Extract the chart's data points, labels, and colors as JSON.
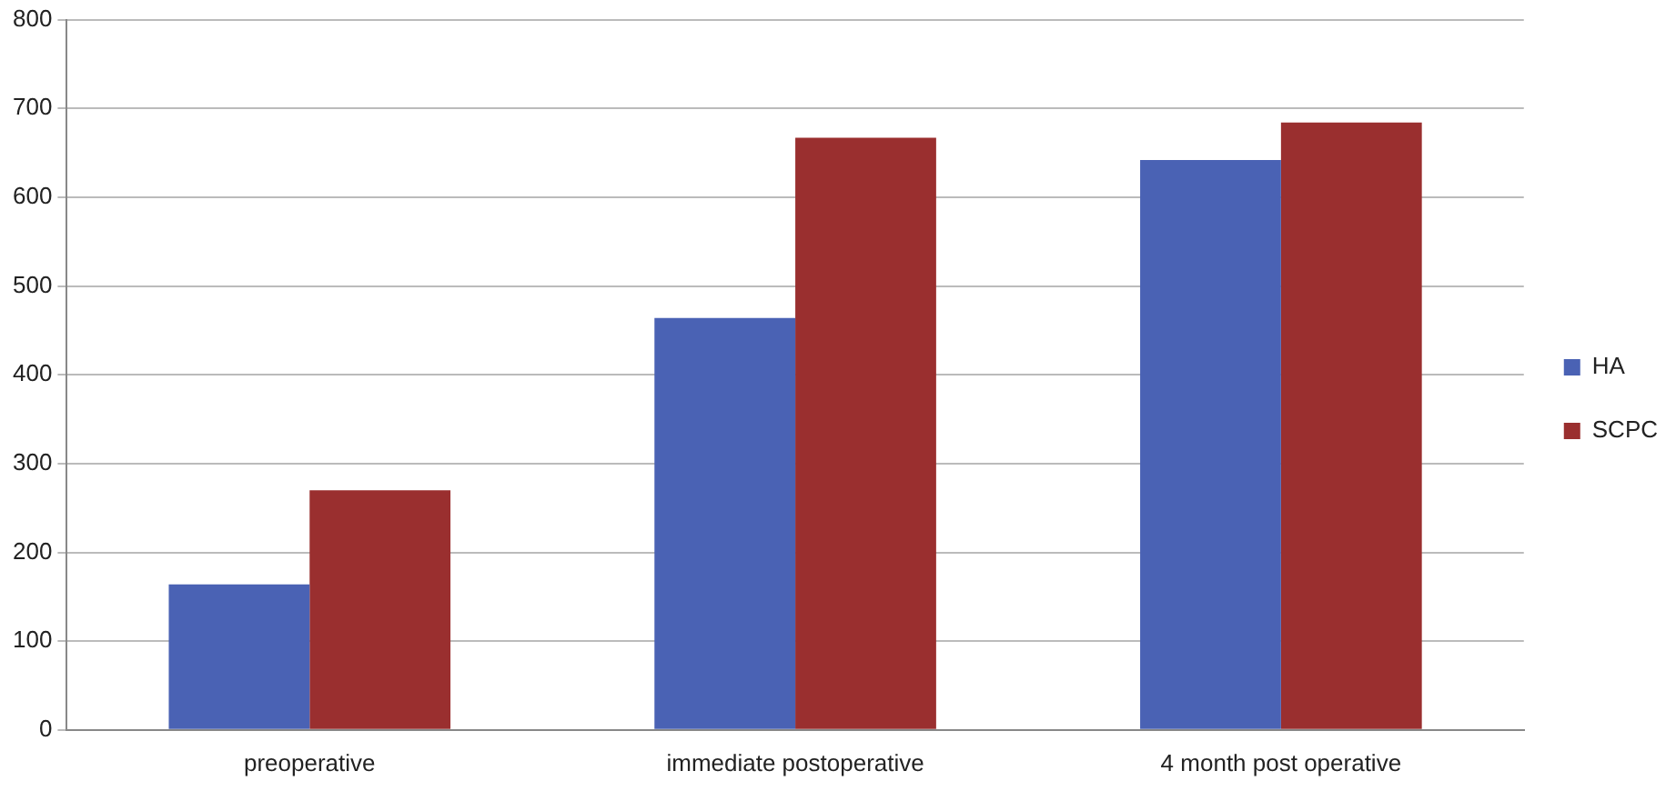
{
  "chart_data": {
    "type": "bar",
    "categories": [
      "preoperative",
      "immediate postoperative",
      "4 month post operative"
    ],
    "series": [
      {
        "name": "HA",
        "color": "#4a62b4",
        "values": [
          164,
          464,
          642
        ]
      },
      {
        "name": "SCPC",
        "color": "#9a2f2f",
        "values": [
          270,
          667,
          684
        ]
      }
    ],
    "ylim": [
      0,
      800
    ],
    "yticks": [
      0,
      100,
      200,
      300,
      400,
      500,
      600,
      700,
      800
    ],
    "grid": "y",
    "legend": "right"
  }
}
